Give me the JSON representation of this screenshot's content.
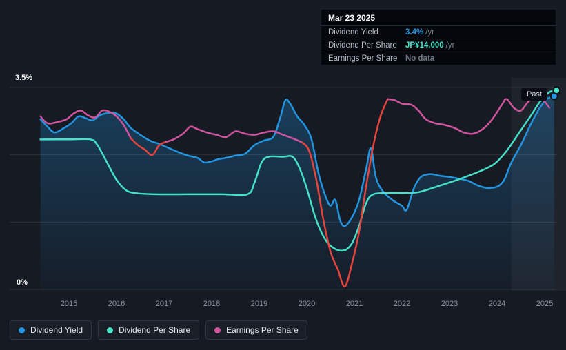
{
  "tooltip": {
    "date": "Mar 23 2025",
    "rows": [
      {
        "label": "Dividend Yield",
        "value": "3.4%",
        "suffix": "/yr",
        "color": "#2394df"
      },
      {
        "label": "Dividend Per Share",
        "value": "JP¥14.000",
        "suffix": "/yr",
        "color": "#46e1c9"
      },
      {
        "label": "Earnings Per Share",
        "value": "No data",
        "suffix": "",
        "color": "#6f7680"
      }
    ]
  },
  "axis": {
    "y_max_label": "3.5%",
    "y_min_label": "0%"
  },
  "past_label": "Past",
  "legend": [
    {
      "label": "Dividend Yield",
      "color": "#2394df"
    },
    {
      "label": "Dividend Per Share",
      "color": "#46e1c9"
    },
    {
      "label": "Earnings Per Share",
      "color": "#d0549e"
    }
  ],
  "chart_data": {
    "type": "line",
    "title": "Dividend history",
    "xlim": [
      2014.35,
      2025.3
    ],
    "ylim": [
      0,
      3.5
    ],
    "x_ticks": [
      2015,
      2016,
      2017,
      2018,
      2019,
      2020,
      2021,
      2022,
      2023,
      2024,
      2025
    ],
    "y_gridlines": [
      0,
      1.1667,
      2.3333,
      3.5
    ],
    "grid": true,
    "legend_position": "bottom-left",
    "past_region_start": 2024.3,
    "series": [
      {
        "name": "Dividend Yield",
        "color": "#2394df",
        "fill": true,
        "end_marker": true,
        "points": [
          [
            2014.4,
            2.95
          ],
          [
            2014.55,
            2.82
          ],
          [
            2014.7,
            2.72
          ],
          [
            2014.9,
            2.8
          ],
          [
            2015.05,
            2.88
          ],
          [
            2015.2,
            3.0
          ],
          [
            2015.35,
            2.97
          ],
          [
            2015.5,
            2.93
          ],
          [
            2015.65,
            3.02
          ],
          [
            2015.85,
            3.06
          ],
          [
            2016.0,
            3.05
          ],
          [
            2016.15,
            2.95
          ],
          [
            2016.3,
            2.8
          ],
          [
            2016.5,
            2.68
          ],
          [
            2016.7,
            2.58
          ],
          [
            2016.9,
            2.52
          ],
          [
            2017.1,
            2.45
          ],
          [
            2017.3,
            2.38
          ],
          [
            2017.5,
            2.32
          ],
          [
            2017.7,
            2.28
          ],
          [
            2017.85,
            2.2
          ],
          [
            2018.0,
            2.22
          ],
          [
            2018.15,
            2.26
          ],
          [
            2018.3,
            2.28
          ],
          [
            2018.5,
            2.32
          ],
          [
            2018.7,
            2.35
          ],
          [
            2018.9,
            2.5
          ],
          [
            2019.1,
            2.58
          ],
          [
            2019.3,
            2.65
          ],
          [
            2019.45,
            3.0
          ],
          [
            2019.55,
            3.28
          ],
          [
            2019.65,
            3.22
          ],
          [
            2019.8,
            3.0
          ],
          [
            2019.95,
            2.85
          ],
          [
            2020.1,
            2.6
          ],
          [
            2020.25,
            2.0
          ],
          [
            2020.4,
            1.6
          ],
          [
            2020.5,
            1.45
          ],
          [
            2020.6,
            1.55
          ],
          [
            2020.7,
            1.2
          ],
          [
            2020.8,
            1.1
          ],
          [
            2020.95,
            1.25
          ],
          [
            2021.1,
            1.55
          ],
          [
            2021.25,
            2.1
          ],
          [
            2021.35,
            2.45
          ],
          [
            2021.45,
            1.95
          ],
          [
            2021.6,
            1.7
          ],
          [
            2021.8,
            1.55
          ],
          [
            2022.0,
            1.45
          ],
          [
            2022.1,
            1.38
          ],
          [
            2022.25,
            1.75
          ],
          [
            2022.4,
            1.95
          ],
          [
            2022.6,
            2.0
          ],
          [
            2022.8,
            1.97
          ],
          [
            2023.0,
            1.95
          ],
          [
            2023.2,
            1.92
          ],
          [
            2023.4,
            1.88
          ],
          [
            2023.6,
            1.8
          ],
          [
            2023.8,
            1.76
          ],
          [
            2024.0,
            1.78
          ],
          [
            2024.15,
            1.9
          ],
          [
            2024.3,
            2.2
          ],
          [
            2024.5,
            2.5
          ],
          [
            2024.7,
            2.85
          ],
          [
            2024.9,
            3.15
          ],
          [
            2025.05,
            3.3
          ],
          [
            2025.2,
            3.35
          ]
        ]
      },
      {
        "name": "Dividend Per Share",
        "color": "#46e1c9",
        "fill": false,
        "end_marker": true,
        "points": [
          [
            2014.4,
            2.6
          ],
          [
            2015.0,
            2.6
          ],
          [
            2015.45,
            2.6
          ],
          [
            2015.6,
            2.5
          ],
          [
            2015.8,
            2.2
          ],
          [
            2016.0,
            1.9
          ],
          [
            2016.2,
            1.72
          ],
          [
            2016.4,
            1.67
          ],
          [
            2016.8,
            1.65
          ],
          [
            2017.5,
            1.65
          ],
          [
            2018.2,
            1.65
          ],
          [
            2018.75,
            1.65
          ],
          [
            2018.9,
            1.85
          ],
          [
            2019.05,
            2.2
          ],
          [
            2019.2,
            2.3
          ],
          [
            2019.5,
            2.3
          ],
          [
            2019.7,
            2.3
          ],
          [
            2019.85,
            2.1
          ],
          [
            2020.0,
            1.75
          ],
          [
            2020.2,
            1.2
          ],
          [
            2020.4,
            0.85
          ],
          [
            2020.6,
            0.7
          ],
          [
            2020.8,
            0.68
          ],
          [
            2020.95,
            0.8
          ],
          [
            2021.1,
            1.1
          ],
          [
            2021.25,
            1.5
          ],
          [
            2021.4,
            1.65
          ],
          [
            2021.7,
            1.67
          ],
          [
            2022.0,
            1.67
          ],
          [
            2022.3,
            1.68
          ],
          [
            2022.5,
            1.72
          ],
          [
            2022.8,
            1.8
          ],
          [
            2023.1,
            1.88
          ],
          [
            2023.4,
            1.97
          ],
          [
            2023.7,
            2.07
          ],
          [
            2023.95,
            2.18
          ],
          [
            2024.2,
            2.4
          ],
          [
            2024.45,
            2.7
          ],
          [
            2024.7,
            3.0
          ],
          [
            2024.9,
            3.25
          ],
          [
            2025.1,
            3.42
          ],
          [
            2025.25,
            3.45
          ]
        ]
      },
      {
        "name": "Earnings Per Share",
        "color": "#d0549e",
        "fill": false,
        "end_marker": false,
        "red_color": "#e8433c",
        "red_segments": [
          [
            2016.25,
            2017.0
          ],
          [
            2019.95,
            2021.68
          ]
        ],
        "points": [
          [
            2014.4,
            3.0
          ],
          [
            2014.55,
            2.88
          ],
          [
            2014.75,
            2.9
          ],
          [
            2014.95,
            2.95
          ],
          [
            2015.1,
            3.05
          ],
          [
            2015.25,
            3.1
          ],
          [
            2015.4,
            3.02
          ],
          [
            2015.55,
            2.98
          ],
          [
            2015.7,
            3.1
          ],
          [
            2015.85,
            3.08
          ],
          [
            2016.0,
            3.0
          ],
          [
            2016.15,
            2.85
          ],
          [
            2016.3,
            2.62
          ],
          [
            2016.45,
            2.5
          ],
          [
            2016.6,
            2.42
          ],
          [
            2016.75,
            2.33
          ],
          [
            2016.9,
            2.5
          ],
          [
            2017.05,
            2.56
          ],
          [
            2017.2,
            2.6
          ],
          [
            2017.4,
            2.7
          ],
          [
            2017.55,
            2.82
          ],
          [
            2017.7,
            2.78
          ],
          [
            2017.9,
            2.72
          ],
          [
            2018.1,
            2.68
          ],
          [
            2018.3,
            2.64
          ],
          [
            2018.5,
            2.74
          ],
          [
            2018.7,
            2.7
          ],
          [
            2018.9,
            2.68
          ],
          [
            2019.1,
            2.72
          ],
          [
            2019.3,
            2.74
          ],
          [
            2019.5,
            2.68
          ],
          [
            2019.7,
            2.62
          ],
          [
            2019.9,
            2.55
          ],
          [
            2020.05,
            2.4
          ],
          [
            2020.2,
            1.9
          ],
          [
            2020.35,
            1.2
          ],
          [
            2020.5,
            0.65
          ],
          [
            2020.65,
            0.35
          ],
          [
            2020.8,
            0.05
          ],
          [
            2020.95,
            0.45
          ],
          [
            2021.1,
            1.0
          ],
          [
            2021.25,
            1.8
          ],
          [
            2021.4,
            2.5
          ],
          [
            2021.55,
            3.0
          ],
          [
            2021.7,
            3.3
          ],
          [
            2021.85,
            3.28
          ],
          [
            2022.0,
            3.22
          ],
          [
            2022.2,
            3.2
          ],
          [
            2022.35,
            3.1
          ],
          [
            2022.5,
            2.95
          ],
          [
            2022.7,
            2.88
          ],
          [
            2022.9,
            2.85
          ],
          [
            2023.1,
            2.8
          ],
          [
            2023.3,
            2.72
          ],
          [
            2023.5,
            2.7
          ],
          [
            2023.7,
            2.78
          ],
          [
            2023.9,
            2.95
          ],
          [
            2024.1,
            3.2
          ],
          [
            2024.2,
            3.3
          ],
          [
            2024.35,
            3.15
          ],
          [
            2024.5,
            3.1
          ],
          [
            2024.65,
            3.25
          ],
          [
            2024.8,
            3.35
          ],
          [
            2024.95,
            3.3
          ],
          [
            2025.1,
            3.15
          ]
        ]
      }
    ]
  }
}
